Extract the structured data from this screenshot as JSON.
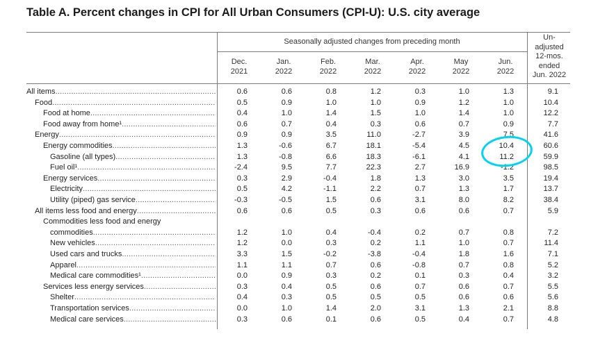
{
  "title": "Table A. Percent changes in CPI for All Urban Consumers (CPI-U): U.S. city average",
  "header": {
    "seasonal": "Seasonally adjusted changes from preceding month",
    "unadjusted": [
      "Un-",
      "adjusted",
      "12-mos.",
      "ended",
      "Jun. 2022"
    ],
    "months": [
      [
        "Dec.",
        "2021"
      ],
      [
        "Jan.",
        "2022"
      ],
      [
        "Feb.",
        "2022"
      ],
      [
        "Mar.",
        "2022"
      ],
      [
        "Apr.",
        "2022"
      ],
      [
        "May",
        "2022"
      ],
      [
        "Jun.",
        "2022"
      ]
    ]
  },
  "rows": [
    {
      "label": "All items",
      "values": [
        "0.6",
        "0.6",
        "0.8",
        "1.2",
        "0.3",
        "1.0",
        "1.3",
        "9.1"
      ]
    },
    {
      "label": "Food",
      "values": [
        "0.5",
        "0.9",
        "1.0",
        "1.0",
        "0.9",
        "1.2",
        "1.0",
        "10.4"
      ]
    },
    {
      "label": "Food at home",
      "values": [
        "0.4",
        "1.0",
        "1.4",
        "1.5",
        "1.0",
        "1.4",
        "1.0",
        "12.2"
      ]
    },
    {
      "label": "Food away from home¹",
      "values": [
        "0.6",
        "0.7",
        "0.4",
        "0.3",
        "0.6",
        "0.7",
        "0.9",
        "7.7"
      ]
    },
    {
      "label": "Energy",
      "values": [
        "0.9",
        "0.9",
        "3.5",
        "11.0",
        "-2.7",
        "3.9",
        "7.5",
        "41.6"
      ]
    },
    {
      "label": "Energy commodities",
      "values": [
        "1.3",
        "-0.6",
        "6.7",
        "18.1",
        "-5.4",
        "4.5",
        "10.4",
        "60.6"
      ]
    },
    {
      "label": "Gasoline (all types)",
      "values": [
        "1.3",
        "-0.8",
        "6.6",
        "18.3",
        "-6.1",
        "4.1",
        "11.2",
        "59.9"
      ]
    },
    {
      "label": "Fuel oil¹",
      "values": [
        "-2.4",
        "9.5",
        "7.7",
        "22.3",
        "2.7",
        "16.9",
        "-1.2",
        "98.5"
      ]
    },
    {
      "label": "Energy services",
      "values": [
        "0.3",
        "2.9",
        "-0.4",
        "1.8",
        "1.3",
        "3.0",
        "3.5",
        "19.4"
      ]
    },
    {
      "label": "Electricity",
      "values": [
        "0.5",
        "4.2",
        "-1.1",
        "2.2",
        "0.7",
        "1.3",
        "1.7",
        "13.7"
      ]
    },
    {
      "label": "Utility (piped) gas service",
      "values": [
        "-0.3",
        "-0.5",
        "1.5",
        "0.6",
        "3.1",
        "8.0",
        "8.2",
        "38.4"
      ]
    },
    {
      "label": "All items less food and energy",
      "values": [
        "0.6",
        "0.6",
        "0.5",
        "0.3",
        "0.6",
        "0.6",
        "0.7",
        "5.9"
      ]
    },
    {
      "label": "Commodities less food and energy",
      "label2": "commodities",
      "values": [
        "1.2",
        "1.0",
        "0.4",
        "-0.4",
        "0.2",
        "0.7",
        "0.8",
        "7.2"
      ]
    },
    {
      "label": "New vehicles",
      "values": [
        "1.2",
        "0.0",
        "0.3",
        "0.2",
        "1.1",
        "1.0",
        "0.7",
        "11.4"
      ]
    },
    {
      "label": "Used cars and trucks",
      "values": [
        "3.3",
        "1.5",
        "-0.2",
        "-3.8",
        "-0.4",
        "1.8",
        "1.6",
        "7.1"
      ]
    },
    {
      "label": "Apparel",
      "values": [
        "1.1",
        "1.1",
        "0.7",
        "0.6",
        "-0.8",
        "0.7",
        "0.8",
        "5.2"
      ]
    },
    {
      "label": "Medical care commodities¹",
      "values": [
        "0.0",
        "0.9",
        "0.3",
        "0.2",
        "0.1",
        "0.3",
        "0.4",
        "3.2"
      ]
    },
    {
      "label": "Services less energy services",
      "values": [
        "0.3",
        "0.4",
        "0.5",
        "0.6",
        "0.7",
        "0.6",
        "0.7",
        "5.5"
      ]
    },
    {
      "label": "Shelter",
      "values": [
        "0.4",
        "0.3",
        "0.5",
        "0.5",
        "0.5",
        "0.6",
        "0.6",
        "5.6"
      ]
    },
    {
      "label": "Transportation services",
      "values": [
        "0.0",
        "1.0",
        "1.4",
        "2.0",
        "3.1",
        "1.3",
        "2.1",
        "8.8"
      ]
    },
    {
      "label": "Medical care services",
      "values": [
        "0.3",
        "0.6",
        "0.1",
        "0.6",
        "0.5",
        "0.4",
        "0.7",
        "4.8"
      ]
    }
  ],
  "colors": {
    "highlight": "#00d4f0"
  }
}
